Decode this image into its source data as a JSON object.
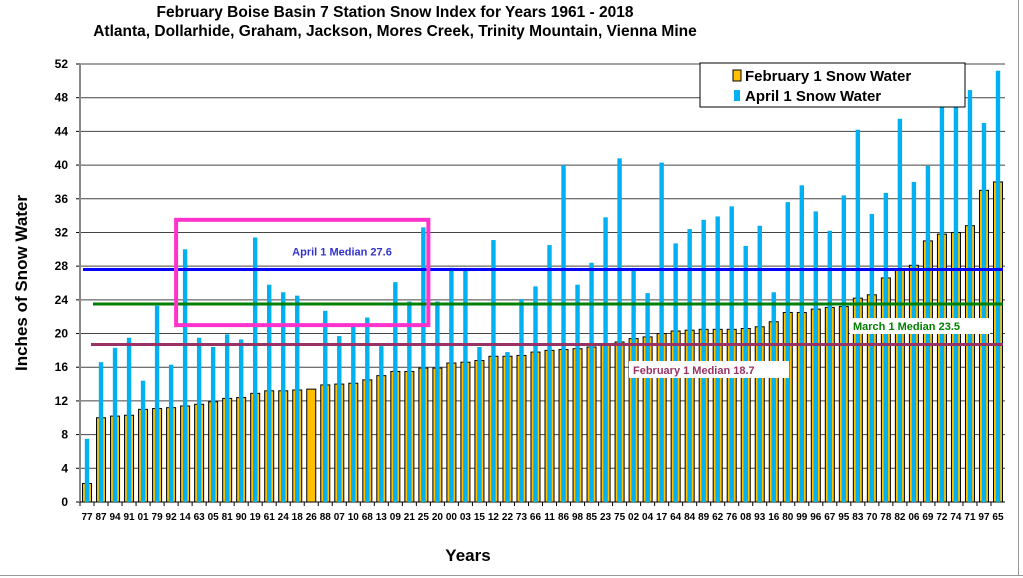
{
  "chart_data": {
    "type": "bar",
    "title": "February Boise Basin 7 Station Snow Index for Years 1961 - 2018",
    "subtitle": "Atlanta, Dollarhide, Graham, Jackson, Mores Creek, Trinity Mountain, Vienna Mine",
    "xlabel": "Years",
    "ylabel": "Inches of Snow Water",
    "ylim": [
      0,
      52
    ],
    "yticks": [
      0,
      4,
      8,
      12,
      16,
      20,
      24,
      28,
      32,
      36,
      40,
      44,
      48,
      52
    ],
    "grid": true,
    "legend_position": "top-right",
    "categories": [
      "77",
      "87",
      "94",
      "91",
      "01",
      "79",
      "92",
      "14",
      "63",
      "05",
      "81",
      "90",
      "19",
      "61",
      "24",
      "18",
      "26",
      "88",
      "07",
      "10",
      "68",
      "13",
      "09",
      "21",
      "25",
      "20",
      "00",
      "03",
      "15",
      "12",
      "22",
      "73",
      "66",
      "11",
      "86",
      "98",
      "85",
      "23",
      "75",
      "02",
      "04",
      "17",
      "64",
      "84",
      "89",
      "62",
      "76",
      "08",
      "93",
      "16",
      "80",
      "99",
      "96",
      "67",
      "95",
      "83",
      "70",
      "78",
      "82",
      "06",
      "69",
      "72",
      "74",
      "71",
      "97",
      "65"
    ],
    "series": [
      {
        "name": "February 1 Snow Water",
        "color": "#FFC000",
        "values": [
          2.2,
          10.0,
          10.2,
          10.3,
          11.0,
          11.1,
          11.2,
          11.4,
          11.6,
          11.9,
          12.3,
          12.4,
          12.9,
          13.2,
          13.2,
          13.3,
          13.4,
          13.9,
          14.0,
          14.1,
          14.5,
          15.0,
          15.5,
          15.5,
          15.9,
          15.9,
          16.5,
          16.6,
          16.8,
          17.3,
          17.3,
          17.4,
          17.8,
          18.0,
          18.1,
          18.2,
          18.4,
          18.7,
          19.0,
          19.4,
          19.6,
          20.0,
          20.3,
          20.4,
          20.5,
          20.5,
          20.5,
          20.6,
          20.8,
          21.4,
          22.5,
          22.5,
          22.9,
          23.1,
          23.2,
          24.2,
          24.6,
          26.6,
          27.6,
          28.1,
          31.0,
          31.8,
          32.0,
          32.8,
          37.0,
          38.0
        ]
      },
      {
        "name": "April 1 Snow Water",
        "color": "#00B0F0",
        "values": [
          7.5,
          16.6,
          18.3,
          19.5,
          14.4,
          23.3,
          16.3,
          30.0,
          19.5,
          18.4,
          19.9,
          19.3,
          31.4,
          25.8,
          24.9,
          24.5,
          null,
          22.7,
          19.7,
          21.1,
          21.9,
          18.5,
          26.1,
          23.8,
          32.6,
          23.8,
          27.8,
          27.6,
          18.4,
          31.1,
          17.8,
          24.1,
          25.6,
          30.5,
          40.0,
          25.8,
          28.4,
          33.8,
          40.8,
          27.6,
          24.8,
          40.3,
          30.7,
          32.4,
          33.5,
          33.9,
          35.1,
          30.4,
          32.8,
          24.9,
          35.6,
          37.6,
          34.5,
          32.2,
          36.4,
          44.2,
          34.2,
          36.7,
          45.5,
          38.0,
          39.9,
          47.5,
          47.5,
          48.9,
          45.0,
          51.2
        ]
      }
    ],
    "reference_lines": [
      {
        "label": "April 1 Median 27.6",
        "value": 27.6,
        "color": "#0000FF"
      },
      {
        "label": "March 1 Median  23.5",
        "value": 23.5,
        "color": "#008000"
      },
      {
        "label": "February 1 Median 18.7",
        "value": 18.7,
        "color": "#993366"
      }
    ],
    "highlight_box": {
      "color": "#FF33CC",
      "y_range": [
        21,
        33.5
      ],
      "categories": [
        "14",
        "25"
      ]
    }
  }
}
